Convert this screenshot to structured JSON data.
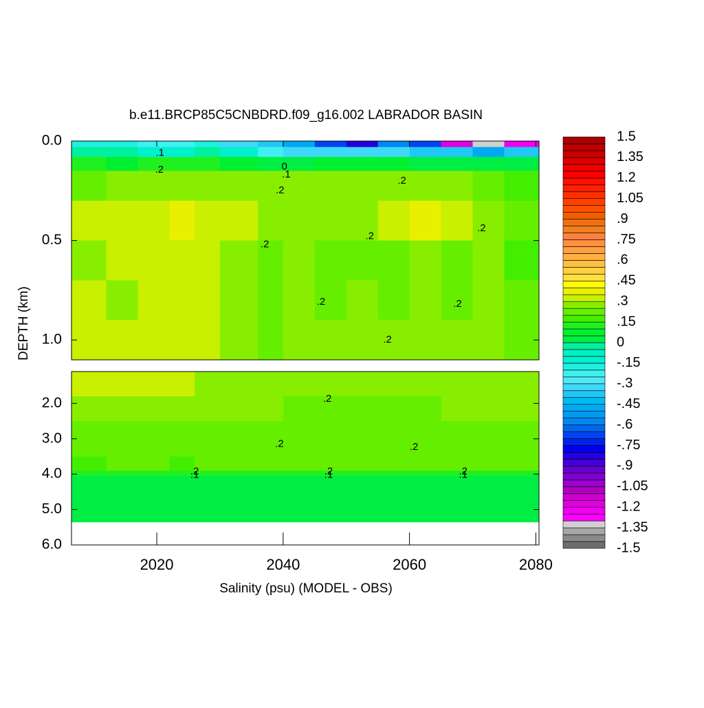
{
  "chart_data": {
    "type": "contour",
    "title": "b.e11.BRCP85C5CNBDRD.f09_g16.002 LABRADOR BASIN",
    "xlabel": "Salinity (psu) (MODEL - OBS)",
    "ylabel": "DEPTH (km)",
    "xlim": [
      2006.5,
      2080.5
    ],
    "xticks": [
      2020,
      2040,
      2060,
      2080
    ],
    "panels": [
      {
        "ylim": [
          0,
          1.1
        ],
        "yticks": [
          {
            "value": 0,
            "label": "0.0"
          },
          0.5,
          {
            "value": 1,
            "label": "1.0"
          }
        ]
      },
      {
        "ylim": [
          1.1,
          6
        ],
        "yticks": [
          {
            "value": 2,
            "label": "2.0"
          },
          {
            "value": 3,
            "label": "3.0"
          },
          {
            "value": 4,
            "label": "4.0"
          },
          {
            "value": 5,
            "label": "5.0"
          },
          {
            "value": 6,
            "label": "6.0"
          }
        ]
      }
    ],
    "field": {
      "x_edges": [
        2006.5,
        2012,
        2017,
        2022,
        2026,
        2030,
        2036,
        2040,
        2045,
        2050,
        2055,
        2060,
        2065,
        2070,
        2075,
        2080.5
      ],
      "depth_edges": [
        0,
        0.03,
        0.08,
        0.15,
        0.3,
        0.5,
        0.7,
        0.9,
        1.1,
        1.8,
        2.5,
        3.5,
        3.9,
        4.05,
        5.35
      ],
      "values": [
        [
          -0.2,
          -0.2,
          -0.25,
          -0.25,
          -0.2,
          -0.3,
          -0.4,
          -0.5,
          -0.7,
          -0.8,
          -0.6,
          -0.7,
          -1.2,
          -1.3,
          -1.25
        ],
        [
          -0.05,
          -0.05,
          -0.1,
          -0.1,
          -0.05,
          -0.15,
          -0.25,
          -0.3,
          -0.3,
          -0.3,
          -0.3,
          -0.4,
          -0.4,
          -0.5,
          -0.4
        ],
        [
          0.1,
          0.08,
          0.1,
          0.12,
          0.1,
          0.05,
          0.02,
          0,
          0.05,
          0.05,
          0.05,
          0,
          0.02,
          0,
          0.02
        ],
        [
          0.22,
          0.27,
          0.27,
          0.27,
          0.27,
          0.27,
          0.27,
          0.27,
          0.27,
          0.27,
          0.27,
          0.27,
          0.27,
          0.22,
          0.17
        ],
        [
          0.32,
          0.32,
          0.32,
          0.37,
          0.32,
          0.32,
          0.27,
          0.27,
          0.27,
          0.27,
          0.32,
          0.37,
          0.32,
          0.27,
          0.22
        ],
        [
          0.27,
          0.32,
          0.32,
          0.32,
          0.32,
          0.27,
          0.22,
          0.27,
          0.22,
          0.22,
          0.22,
          0.27,
          0.22,
          0.27,
          0.17
        ],
        [
          0.32,
          0.27,
          0.32,
          0.32,
          0.32,
          0.27,
          0.22,
          0.27,
          0.22,
          0.27,
          0.22,
          0.27,
          0.22,
          0.27,
          0.22
        ],
        [
          0.32,
          0.32,
          0.32,
          0.32,
          0.32,
          0.27,
          0.22,
          0.27,
          0.27,
          0.27,
          0.27,
          0.27,
          0.27,
          0.27,
          0.22
        ],
        [
          0.32,
          0.32,
          0.32,
          0.32,
          0.27,
          0.27,
          0.27,
          0.27,
          0.27,
          0.27,
          0.27,
          0.27,
          0.27,
          0.27,
          0.27
        ],
        [
          0.27,
          0.27,
          0.27,
          0.27,
          0.27,
          0.27,
          0.27,
          0.22,
          0.22,
          0.22,
          0.22,
          0.22,
          0.27,
          0.27,
          0.27
        ],
        [
          0.22,
          0.22,
          0.22,
          0.22,
          0.22,
          0.22,
          0.22,
          0.22,
          0.22,
          0.22,
          0.22,
          0.22,
          0.22,
          0.22,
          0.22
        ],
        [
          0.17,
          0.22,
          0.22,
          0.17,
          0.22,
          0.22,
          0.22,
          0.22,
          0.22,
          0.22,
          0.22,
          0.22,
          0.22,
          0.22,
          0.22
        ],
        [
          0.1,
          0.1,
          0.1,
          0.1,
          0.1,
          0.1,
          0.1,
          0.1,
          0.1,
          0.1,
          0.1,
          0.1,
          0.1,
          0.1,
          0.1
        ],
        [
          0.02,
          0.02,
          0.02,
          0.02,
          0.02,
          0.02,
          0.02,
          0.02,
          0.02,
          0.02,
          0.02,
          0.02,
          0.02,
          0.02,
          0.02
        ]
      ]
    },
    "contour_labels": [
      {
        "text": ".1",
        "x": 2020.5,
        "depth": 0.06
      },
      {
        "text": ".2",
        "x": 2020.4,
        "depth": 0.145
      },
      {
        "text": "0",
        "x": 2040.2,
        "depth": 0.13
      },
      {
        "text": ".1",
        "x": 2040.5,
        "depth": 0.17
      },
      {
        "text": ".2",
        "x": 2039.5,
        "depth": 0.25
      },
      {
        "text": ".2",
        "x": 2058.8,
        "depth": 0.2
      },
      {
        "text": ".2",
        "x": 2037.1,
        "depth": 0.52
      },
      {
        "text": ".2",
        "x": 2053.7,
        "depth": 0.48
      },
      {
        "text": ".2",
        "x": 2071.4,
        "depth": 0.44
      },
      {
        "text": ".2",
        "x": 2046,
        "depth": 0.81
      },
      {
        "text": ".2",
        "x": 2067.6,
        "depth": 0.82
      },
      {
        "text": ".2",
        "x": 2056.5,
        "depth": 1.0
      },
      {
        "text": ".2",
        "x": 2047,
        "depth": 1.88
      },
      {
        "text": ".2",
        "x": 2039.4,
        "depth": 3.15
      },
      {
        "text": ".2",
        "x": 2060.7,
        "depth": 3.24
      },
      {
        "text": ".2",
        "x": 2026,
        "depth": 3.93
      },
      {
        "text": ".1",
        "x": 2026,
        "depth": 4.03
      },
      {
        "text": ".2",
        "x": 2047.2,
        "depth": 3.93
      },
      {
        "text": ".1",
        "x": 2047.2,
        "depth": 4.03
      },
      {
        "text": ".2",
        "x": 2068.5,
        "depth": 3.93
      },
      {
        "text": ".1",
        "x": 2068.5,
        "depth": 4.03
      }
    ],
    "colorbar": {
      "clim": [
        -1.5,
        1.5
      ],
      "ticks": [
        -1.5,
        {
          "value": -1.35,
          "label": "-1.35"
        },
        {
          "value": -1.2,
          "label": "-1.2"
        },
        {
          "value": -1.05,
          "label": "-1.05"
        },
        {
          "value": -0.9,
          "label": "-.9"
        },
        {
          "value": -0.75,
          "label": "-.75"
        },
        {
          "value": -0.6,
          "label": "-.6"
        },
        {
          "value": -0.45,
          "label": "-.45"
        },
        {
          "value": -0.3,
          "label": "-.3"
        },
        {
          "value": -0.15,
          "label": "-.15"
        },
        0,
        {
          "value": 0.15,
          "label": ".15"
        },
        {
          "value": 0.3,
          "label": ".3"
        },
        {
          "value": 0.45,
          "label": ".45"
        },
        {
          "value": 0.6,
          "label": ".6"
        },
        {
          "value": 0.75,
          "label": ".75"
        },
        {
          "value": 0.9,
          "label": ".9"
        },
        1.05,
        1.2,
        1.35,
        1.5
      ],
      "colors": [
        "#6e6e6e",
        "#8a8a8a",
        "#a6a6a6",
        "#d0d0d0",
        "#ff00ff",
        "#f000f0",
        "#e000e0",
        "#cc00cc",
        "#b000c0",
        "#9900cc",
        "#8000d0",
        "#6600cc",
        "#4400d8",
        "#2200e0",
        "#0000ee",
        "#0022ee",
        "#0044f0",
        "#0066f0",
        "#0088f0",
        "#0099f0",
        "#00aaf0",
        "#00bbf0",
        "#20c8f5",
        "#40d8f8",
        "#50e8f8",
        "#40f0f0",
        "#20f0e0",
        "#00f0d0",
        "#00f0c0",
        "#00f0a0",
        "#00ee44",
        "#00f030",
        "#20f020",
        "#44ee00",
        "#66ee00",
        "#88ee00",
        "#c8f000",
        "#e8f000",
        "#ffff00",
        "#ffe040",
        "#ffd040",
        "#ffc040",
        "#ffb040",
        "#ffa040",
        "#ff9040",
        "#ff8040",
        "#f08020",
        "#f07010",
        "#f06000",
        "#ff5000",
        "#ff4000",
        "#ff3000",
        "#ff2000",
        "#ff1000",
        "#ff0000",
        "#ee0000",
        "#dd0000",
        "#cc0000",
        "#bb0000",
        "#aa0000"
      ]
    }
  }
}
